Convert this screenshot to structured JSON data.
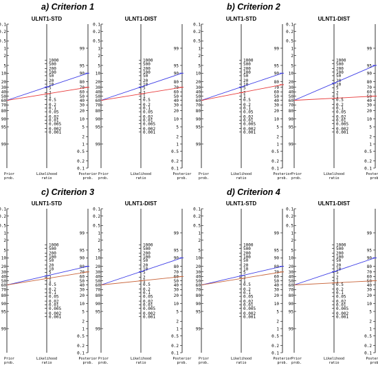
{
  "colors": {
    "axis": "#000000",
    "blue": "#3a3ae6",
    "red": "#e83a3a",
    "orange": "#c8643a"
  },
  "scales": {
    "prior_ticks": [
      "0.1",
      "0.2",
      "0.5",
      "1",
      "2",
      "5",
      "10",
      "20",
      "30",
      "40",
      "50",
      "60",
      "70",
      "80",
      "90",
      "95",
      "99"
    ],
    "lr_ticks": [
      "1000",
      "500",
      "200",
      "100",
      "50",
      "20",
      "10",
      "5",
      "2",
      "1",
      "0.5",
      "0.2",
      "0.1",
      "0.05",
      "0.02",
      "0.01",
      "0.005",
      "0.002",
      "0.001"
    ],
    "posterior_ticks": [
      "99",
      "95",
      "90",
      "80",
      "70",
      "60",
      "50",
      "40",
      "30",
      "20",
      "10",
      "5",
      "2",
      "1",
      "0.5",
      "0.2",
      "0.1"
    ],
    "axis_labels": {
      "prior": "Prior prob.",
      "lr": "Likelihood ratio",
      "posterior": "Posterior prob."
    }
  },
  "criteria": [
    {
      "label": "a)  Criterion 1"
    },
    {
      "label": "b)  Criterion 2"
    },
    {
      "label": "c)  Criterion 3"
    },
    {
      "label": "d)  Criterion 4"
    }
  ],
  "chart_data": [
    {
      "type": "line",
      "criterion": 1,
      "title": "ULNT1-STD",
      "prior": 60,
      "lines": [
        {
          "color": "blue",
          "lr": 10.5,
          "posterior": 90
        },
        {
          "color": "red",
          "lr": 4.2,
          "posterior": 70
        }
      ]
    },
    {
      "type": "line",
      "criterion": 1,
      "title": "ULNT1-DIST",
      "prior": 60,
      "lines": [
        {
          "color": "blue",
          "lr": 10.5,
          "posterior": 90
        },
        {
          "color": "red",
          "lr": 4.2,
          "posterior": 70
        }
      ]
    },
    {
      "type": "line",
      "criterion": 2,
      "title": "ULNT1-STD",
      "prior": 60,
      "lines": [
        {
          "color": "blue",
          "lr": 10.5,
          "posterior": 90
        },
        {
          "color": "red",
          "lr": 5.0,
          "posterior": 75
        }
      ]
    },
    {
      "type": "line",
      "criterion": 2,
      "title": "ULNT1-DIST",
      "prior": 60,
      "lines": [
        {
          "color": "blue",
          "lr": 17,
          "posterior": 95
        },
        {
          "color": "red",
          "lr": 1.56,
          "posterior": 50
        }
      ]
    },
    {
      "type": "line",
      "criterion": 3,
      "title": "ULNT1-STD",
      "prior": 60,
      "lines": [
        {
          "color": "blue",
          "lr": 3.6,
          "posterior": 80
        },
        {
          "color": "orange",
          "lr": 2.3,
          "posterior": 70
        }
      ]
    },
    {
      "type": "line",
      "criterion": 3,
      "title": "ULNT1-DIST",
      "prior": 60,
      "lines": [
        {
          "color": "blue",
          "lr": 9.0,
          "posterior": 90
        },
        {
          "color": "orange",
          "lr": 1.56,
          "posterior": 60
        }
      ]
    },
    {
      "type": "line",
      "criterion": 4,
      "title": "ULNT1-STD",
      "prior": 60,
      "lines": [
        {
          "color": "blue",
          "lr": 4.0,
          "posterior": 80
        },
        {
          "color": "orange",
          "lr": 2.0,
          "posterior": 70
        }
      ]
    },
    {
      "type": "line",
      "criterion": 4,
      "title": "ULNT1-DIST",
      "prior": 60,
      "lines": [
        {
          "color": "blue",
          "lr": 7.3,
          "posterior": 90
        },
        {
          "color": "orange",
          "lr": 0.9,
          "posterior": 50
        }
      ]
    }
  ]
}
